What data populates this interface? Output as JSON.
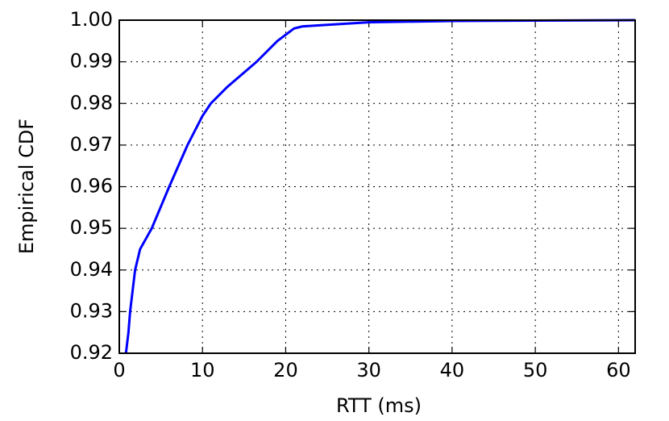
{
  "chart_data": {
    "type": "line",
    "x_label": "RTT (ms)",
    "y_label": "Empirical CDF",
    "x": [
      0.8,
      1.1,
      1.3,
      1.9,
      2.5,
      3.9,
      6,
      8.2,
      10,
      11,
      13,
      16.5,
      19,
      21,
      22,
      26,
      30,
      40,
      50,
      62
    ],
    "series": [
      {
        "color": "#0000ff",
        "values": [
          0.92,
          0.925,
          0.93,
          0.94,
          0.945,
          0.95,
          0.96,
          0.97,
          0.977,
          0.98,
          0.984,
          0.99,
          0.995,
          0.998,
          0.9985,
          0.999,
          0.9995,
          0.9998,
          0.9999,
          1.0
        ]
      }
    ],
    "xlim": [
      0,
      62
    ],
    "ylim": [
      0.92,
      1.0
    ],
    "xticks": [
      0,
      10,
      20,
      30,
      40,
      50,
      60
    ],
    "yticks": [
      0.92,
      0.93,
      0.94,
      0.95,
      0.96,
      0.97,
      0.98,
      0.99,
      {
        "value": 1.0,
        "label": "1.00"
      }
    ],
    "grid": true
  }
}
